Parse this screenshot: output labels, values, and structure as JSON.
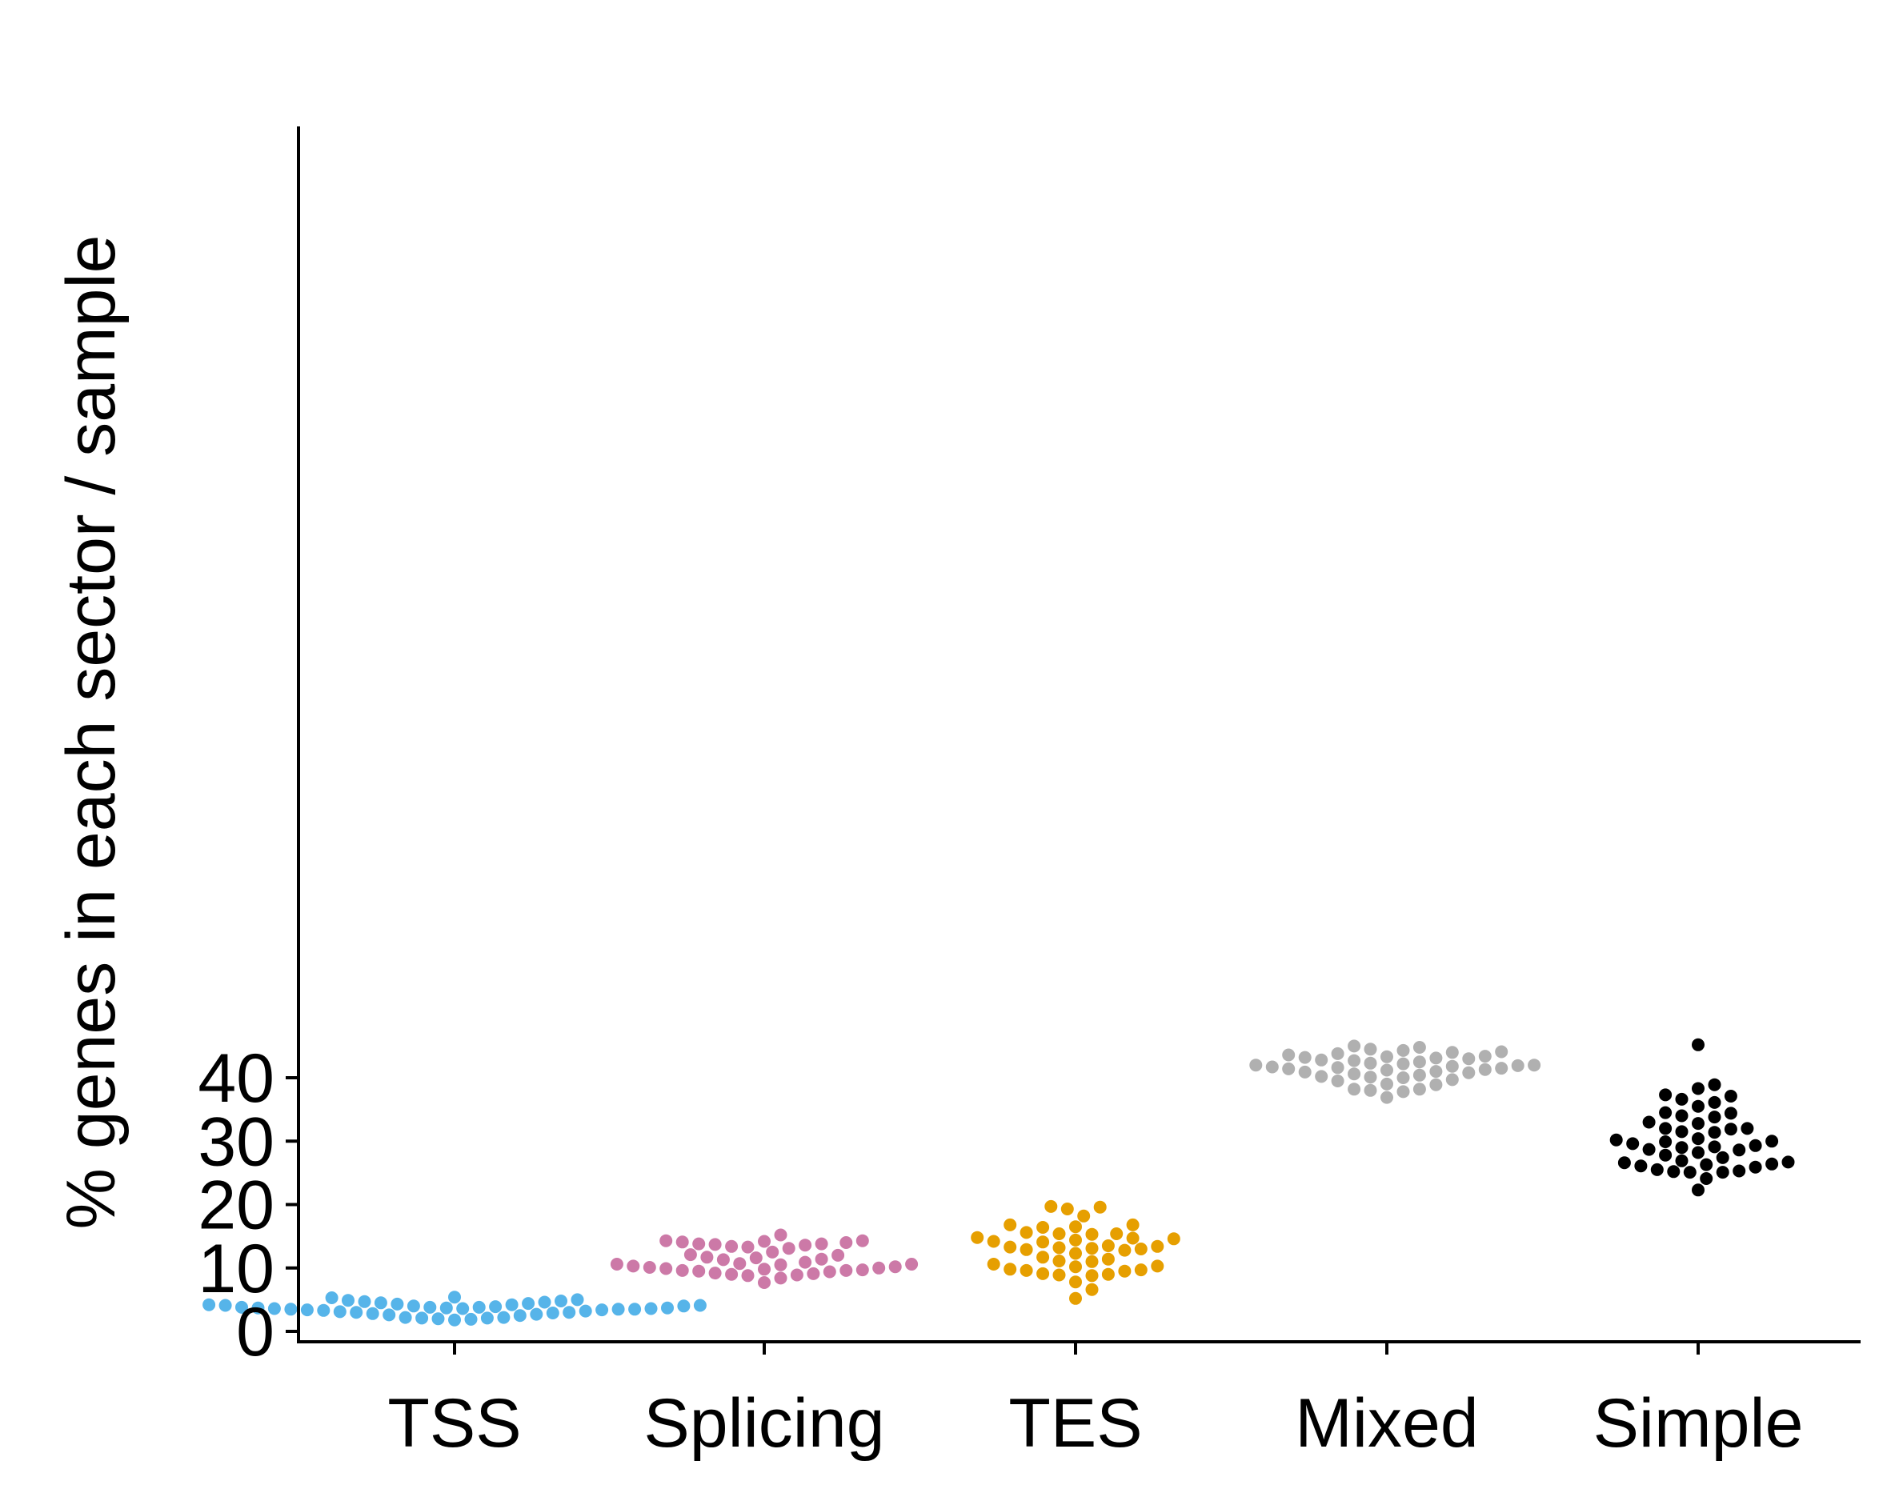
{
  "chart_data": {
    "type": "scatter",
    "subtype": "swarm",
    "title": "",
    "xlabel": "",
    "ylabel": "% genes in each sector / sample",
    "categories": [
      "TSS",
      "Splicing",
      "TES",
      "Mixed",
      "Simple"
    ],
    "ylim": [
      0,
      47
    ],
    "yticks": [
      0,
      10,
      20,
      30,
      40
    ],
    "ytick_labels": [
      "0",
      "10",
      "20",
      "30",
      "40"
    ],
    "grid": false,
    "legend": "none",
    "series": [
      {
        "category": "TSS",
        "color": "#56b4e9",
        "values": [
          1.8,
          1.9,
          2.0,
          2.1,
          2.1,
          2.2,
          2.2,
          2.5,
          2.6,
          2.7,
          2.8,
          2.9,
          3.0,
          3.0,
          3.1,
          3.2,
          3.3,
          3.4,
          3.4,
          3.5,
          3.5,
          3.5,
          3.6,
          3.6,
          3.6,
          3.7,
          3.7,
          3.7,
          3.8,
          3.8,
          3.8,
          3.9,
          4.0,
          4.0,
          4.1,
          4.1,
          4.2,
          4.2,
          4.3,
          4.4,
          4.5,
          4.6,
          4.7,
          4.8,
          4.9,
          5.0,
          5.3,
          5.4
        ]
      },
      {
        "category": "Splicing",
        "color": "#cc79a7",
        "values": [
          7.7,
          8.4,
          8.8,
          8.9,
          9.0,
          9.1,
          9.2,
          9.4,
          9.5,
          9.6,
          9.6,
          9.7,
          9.8,
          9.9,
          10.0,
          10.1,
          10.2,
          10.3,
          10.5,
          10.6,
          10.6,
          10.7,
          10.9,
          11.3,
          11.4,
          11.6,
          11.7,
          12.0,
          12.1,
          12.5,
          13.1,
          13.3,
          13.4,
          13.6,
          13.7,
          13.8,
          13.8,
          14.0,
          14.1,
          14.2,
          14.3,
          14.3,
          15.2
        ]
      },
      {
        "category": "TES",
        "color": "#e69f00",
        "values": [
          5.2,
          6.6,
          7.8,
          8.8,
          8.9,
          9.0,
          9.1,
          9.5,
          9.6,
          9.7,
          9.8,
          10.2,
          10.3,
          10.6,
          11.0,
          11.1,
          11.4,
          11.7,
          12.3,
          12.8,
          12.9,
          13.0,
          13.1,
          13.2,
          13.3,
          13.4,
          13.5,
          14.1,
          14.2,
          14.4,
          14.6,
          14.7,
          14.8,
          15.3,
          15.4,
          15.4,
          15.6,
          16.4,
          16.5,
          16.8,
          16.8,
          18.2,
          19.3,
          19.6,
          19.7
        ]
      },
      {
        "category": "Mixed",
        "color": "#b0b0b0",
        "values": [
          36.9,
          37.8,
          38.0,
          38.2,
          38.2,
          38.9,
          39.0,
          39.5,
          39.7,
          40.0,
          40.1,
          40.2,
          40.4,
          40.6,
          40.8,
          40.9,
          41.0,
          41.2,
          41.3,
          41.4,
          41.5,
          41.6,
          41.7,
          41.8,
          41.9,
          42.0,
          42.0,
          42.2,
          42.3,
          42.5,
          42.7,
          42.8,
          43.0,
          43.1,
          43.2,
          43.3,
          43.4,
          43.6,
          43.8,
          44.0,
          44.1,
          44.3,
          44.5,
          44.8,
          45.0
        ]
      },
      {
        "category": "Simple",
        "color": "#000000",
        "values": [
          22.3,
          24.1,
          25.1,
          25.1,
          25.2,
          25.3,
          25.5,
          25.9,
          26.1,
          26.3,
          26.4,
          26.6,
          26.7,
          26.9,
          27.4,
          27.8,
          28.2,
          28.6,
          28.7,
          29.0,
          29.1,
          29.3,
          29.6,
          29.9,
          30.0,
          30.2,
          30.4,
          31.4,
          31.5,
          31.9,
          32.0,
          32.0,
          32.8,
          33.0,
          33.8,
          34.0,
          34.4,
          34.5,
          35.5,
          36.1,
          36.6,
          37.1,
          37.3,
          38.3,
          38.9,
          45.2
        ]
      }
    ]
  }
}
